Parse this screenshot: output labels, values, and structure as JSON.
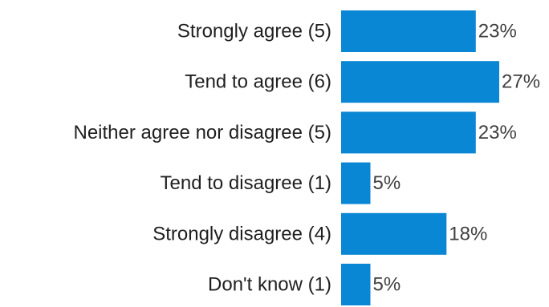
{
  "chart_data": {
    "type": "bar",
    "orientation": "horizontal",
    "categories": [
      "Strongly agree (5)",
      "Tend to agree (6)",
      "Neither agree nor disagree (5)",
      "Tend to disagree (1)",
      "Strongly disagree (4)",
      "Don't know (1)"
    ],
    "values": [
      23,
      27,
      23,
      5,
      18,
      5
    ],
    "value_labels": [
      "23%",
      "27%",
      "23%",
      "5%",
      "18%",
      "5%"
    ],
    "unit": "%",
    "xlim": [
      0,
      27
    ],
    "bar_color": "#0A87D4",
    "grid": false,
    "legend": "none",
    "title": "",
    "xlabel": "",
    "ylabel": ""
  }
}
